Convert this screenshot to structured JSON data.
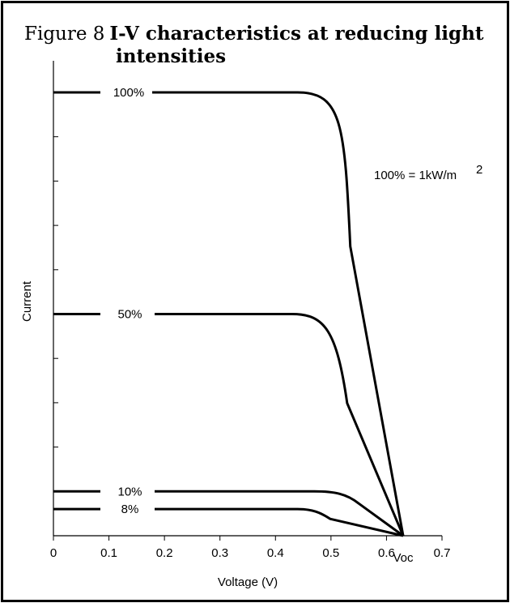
{
  "title": {
    "figure_label": "Figure 8",
    "text_line1": "I-V characteristics at reducing light",
    "text_line2": "intensities"
  },
  "chart_data": {
    "type": "line",
    "title": "I-V characteristics at reducing light intensities",
    "xlabel": "Voltage (V)",
    "ylabel": "Current",
    "xlim": [
      0,
      0.7
    ],
    "x_ticks": [
      "0",
      "0.1",
      "0.2",
      "0.3",
      "0.4",
      "0.5",
      "0.6",
      "0.7"
    ],
    "annotations": [
      "100% = 1kW/m",
      "2",
      "Voc"
    ],
    "series": [
      {
        "name": "100%",
        "isc": 1.0,
        "knee_start": 0.44,
        "voc": 0.63
      },
      {
        "name": "50%",
        "isc": 0.5,
        "knee_start": 0.43,
        "voc": 0.63
      },
      {
        "name": "10%",
        "isc": 0.1,
        "knee_start": 0.47,
        "voc": 0.63
      },
      {
        "name": "8%",
        "isc": 0.06,
        "knee_start": 0.44,
        "voc": 0.63
      }
    ]
  }
}
